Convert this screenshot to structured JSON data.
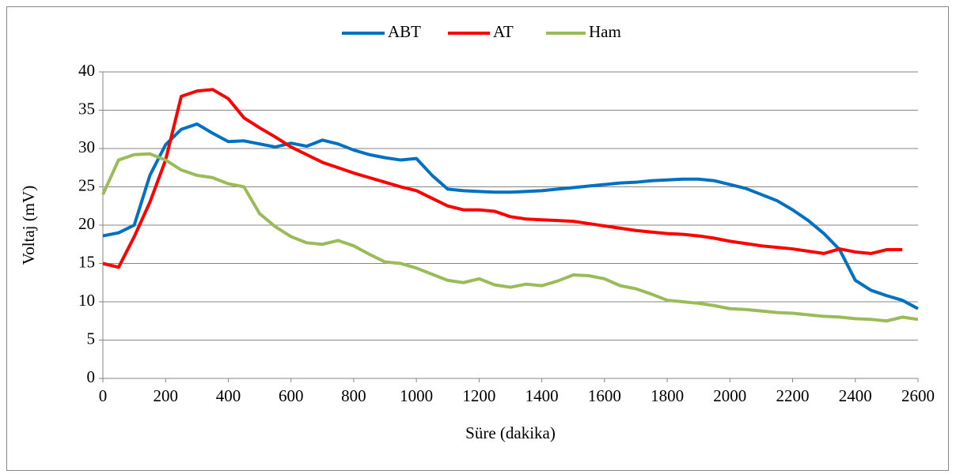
{
  "chart_data": {
    "type": "line",
    "xlabel": "Süre (dakika)",
    "ylabel": "Voltaj (mV)",
    "x": [
      0,
      50,
      100,
      150,
      200,
      250,
      300,
      350,
      400,
      450,
      500,
      550,
      600,
      650,
      700,
      750,
      800,
      850,
      900,
      950,
      1000,
      1050,
      1100,
      1150,
      1200,
      1250,
      1300,
      1350,
      1400,
      1450,
      1500,
      1550,
      1600,
      1650,
      1700,
      1750,
      1800,
      1850,
      1900,
      1950,
      2000,
      2050,
      2100,
      2150,
      2200,
      2250,
      2300,
      2350,
      2400,
      2450,
      2500,
      2550,
      2600
    ],
    "series": [
      {
        "name": "ABT",
        "color": "#0070c0",
        "values": [
          18.6,
          19.0,
          20.0,
          26.5,
          30.5,
          32.5,
          33.2,
          32.0,
          30.9,
          31.0,
          30.6,
          30.2,
          30.7,
          30.3,
          31.1,
          30.6,
          29.8,
          29.2,
          28.8,
          28.5,
          28.7,
          26.5,
          24.7,
          24.5,
          24.4,
          24.3,
          24.3,
          24.4,
          24.5,
          24.7,
          24.9,
          25.1,
          25.3,
          25.5,
          25.6,
          25.8,
          25.9,
          26.0,
          26.0,
          25.8,
          25.3,
          24.8,
          24.0,
          23.2,
          22.0,
          20.6,
          18.9,
          16.8,
          12.8,
          11.5,
          10.8,
          10.2,
          9.1
        ]
      },
      {
        "name": "AT",
        "color": "#ff0000",
        "values": [
          15.0,
          14.5,
          18.5,
          23.0,
          28.5,
          36.8,
          37.5,
          37.7,
          36.5,
          34.0,
          32.7,
          31.5,
          30.2,
          29.2,
          28.2,
          27.5,
          26.8,
          26.2,
          25.6,
          25.0,
          24.5,
          23.5,
          22.5,
          22.0,
          22.0,
          21.8,
          21.1,
          20.8,
          20.7,
          20.6,
          20.5,
          20.2,
          19.9,
          19.6,
          19.3,
          19.1,
          18.9,
          18.8,
          18.6,
          18.3,
          17.9,
          17.6,
          17.3,
          17.1,
          16.9,
          16.6,
          16.3,
          16.9,
          16.5,
          16.3,
          16.8,
          16.8,
          null
        ]
      },
      {
        "name": "Ham",
        "color": "#9bbb59",
        "values": [
          24.0,
          28.5,
          29.2,
          29.3,
          28.5,
          27.2,
          26.5,
          26.2,
          25.4,
          25.0,
          21.5,
          19.8,
          18.5,
          17.7,
          17.5,
          18.0,
          17.3,
          16.2,
          15.2,
          15.0,
          14.4,
          13.6,
          12.8,
          12.5,
          13.0,
          12.2,
          11.9,
          12.3,
          12.1,
          12.7,
          13.5,
          13.4,
          13.0,
          12.1,
          11.7,
          11.0,
          10.2,
          10.0,
          9.8,
          9.5,
          9.1,
          9.0,
          8.8,
          8.6,
          8.5,
          8.3,
          8.1,
          8.0,
          7.8,
          7.7,
          7.5,
          8.0,
          7.7
        ]
      }
    ],
    "xlim": [
      0,
      2600
    ],
    "xticks": [
      0,
      200,
      400,
      600,
      800,
      1000,
      1200,
      1400,
      1600,
      1800,
      2000,
      2200,
      2400,
      2600
    ],
    "ylim": [
      0,
      40
    ],
    "yticks": [
      0,
      5,
      10,
      15,
      20,
      25,
      30,
      35,
      40
    ],
    "grid": true,
    "legend": "top"
  }
}
